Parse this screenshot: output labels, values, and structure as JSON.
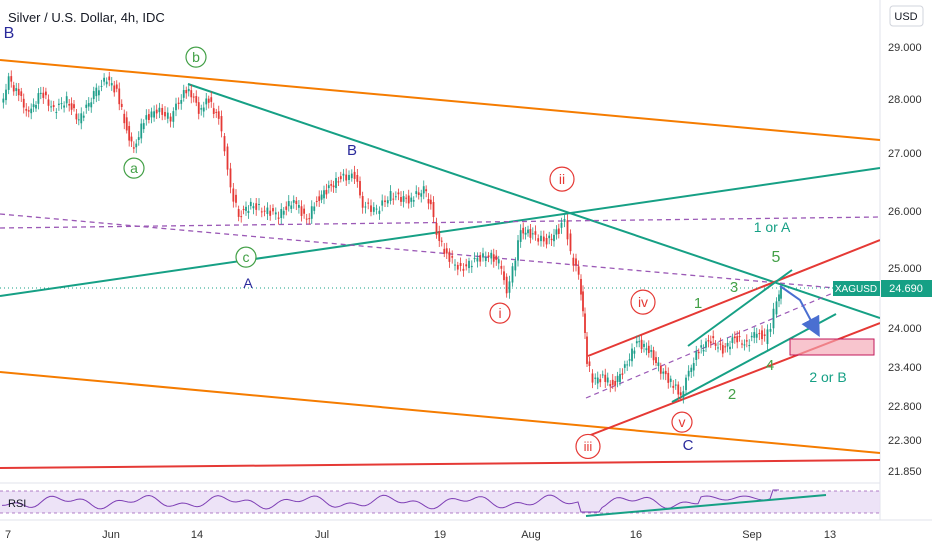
{
  "header": {
    "title": "Silver / U.S. Dollar, 4h, IDC",
    "currency_button": "USD"
  },
  "chart_data": [
    {
      "type": "line",
      "title": "Silver / U.S. Dollar, 4h, IDC",
      "symbol": "XAGUSD",
      "last_price": "24.690",
      "y_ticks": [
        "29.000",
        "28.000",
        "27.000",
        "26.000",
        "25.000",
        "24.000",
        "23.400",
        "22.800",
        "22.300",
        "21.850"
      ],
      "x_ticks": [
        "7",
        "Jun",
        "14",
        "Jul",
        "19",
        "Aug",
        "16",
        "Sep",
        "13"
      ],
      "ylim": [
        21.6,
        29.4
      ],
      "scale": "log",
      "colors": {
        "price": "#1e9e8a",
        "down_bar": "#e53935",
        "trend_orange": "#f57c00",
        "trend_teal": "#16a085",
        "trend_red": "#e53935",
        "dashed": "#9b59b6",
        "projection": "#4a6fd1",
        "target_zone": "#f4a6b4"
      },
      "wave_labels": [
        {
          "text": "B",
          "color": "#2a2a9b",
          "circled": false
        },
        {
          "text": "b",
          "color": "#43a047",
          "circled": true
        },
        {
          "text": "a",
          "color": "#43a047",
          "circled": true
        },
        {
          "text": "c",
          "color": "#43a047",
          "circled": true
        },
        {
          "text": "A",
          "color": "#2a2a9b",
          "circled": false
        },
        {
          "text": "B",
          "color": "#2a2a9b",
          "circled": false
        },
        {
          "text": "ii",
          "color": "#e53935",
          "circled": true
        },
        {
          "text": "i",
          "color": "#e53935",
          "circled": true
        },
        {
          "text": "iii",
          "color": "#e53935",
          "circled": true
        },
        {
          "text": "iv",
          "color": "#e53935",
          "circled": true
        },
        {
          "text": "v",
          "color": "#e53935",
          "circled": true
        },
        {
          "text": "C",
          "color": "#2a2a9b",
          "circled": false
        },
        {
          "text": "1 or A",
          "color": "#16a085",
          "circled": false
        },
        {
          "text": "5",
          "color": "#43a047",
          "circled": false
        },
        {
          "text": "3",
          "color": "#43a047",
          "circled": false
        },
        {
          "text": "1",
          "color": "#43a047",
          "circled": false
        },
        {
          "text": "4",
          "color": "#43a047",
          "circled": false
        },
        {
          "text": "2",
          "color": "#43a047",
          "circled": false
        },
        {
          "text": "2 or B",
          "color": "#16a085",
          "circled": false
        }
      ]
    },
    {
      "type": "line",
      "title": "RSI",
      "indicator": "RSI"
    }
  ]
}
